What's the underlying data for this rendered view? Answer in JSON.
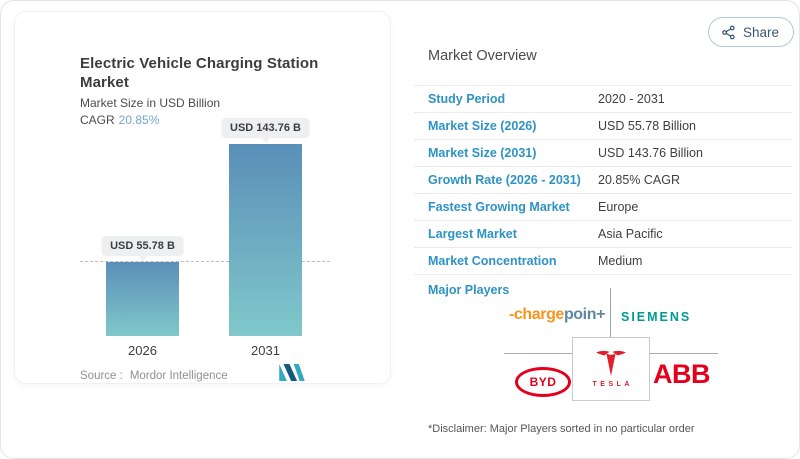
{
  "share": {
    "label": "Share"
  },
  "chart_panel": {
    "title_line1": "Electric Vehicle Charging Station",
    "title_line2": "Market",
    "subtitle": "Market Size in USD Billion",
    "cagr_label": "CAGR",
    "cagr_value": "20.85%",
    "source_label": "Source :",
    "source_value": "Mordor Intelligence"
  },
  "chart_data": {
    "type": "bar",
    "title": "Electric Vehicle Charging Station Market",
    "subtitle": "Market Size in USD Billion",
    "cagr": "20.85%",
    "categories": [
      "2026",
      "2031"
    ],
    "values": [
      55.78,
      143.76
    ],
    "data_labels": [
      "USD 55.78 B",
      "USD 143.76 B"
    ],
    "reference_line_at": 55.78,
    "ylim": [
      0,
      143.76
    ],
    "grid": false,
    "source": "Mordor Intelligence"
  },
  "overview": {
    "title": "Market Overview",
    "rows": [
      {
        "label": "Study Period",
        "value": "2020 - 2031"
      },
      {
        "label": "Market Size (2026)",
        "value": "USD 55.78 Billion"
      },
      {
        "label": "Market Size (2031)",
        "value": "USD 143.76 Billion"
      },
      {
        "label": "Growth Rate (2026 - 2031)",
        "value": "20.85% CAGR"
      },
      {
        "label": "Fastest Growing Market",
        "value": "Europe"
      },
      {
        "label": "Largest Market",
        "value": "Asia Pacific"
      },
      {
        "label": "Market Concentration",
        "value": "Medium"
      }
    ],
    "major_players_label": "Major Players",
    "players": {
      "chargepoint_prefix": "-charge",
      "chargepoint_suffix": "poin+",
      "siemens": "SIEMENS",
      "byd": "BYD",
      "tesla": "TESLA",
      "abb": "ABB"
    },
    "disclaimer": "*Disclaimer: Major Players sorted in no particular order"
  },
  "colors": {
    "label_blue": "#2d93c5",
    "cagr_blue": "#74a5c8",
    "bar_top": "#5a8fb8",
    "bar_bottom": "#80c8cb",
    "share_blue": "#3b5872",
    "chargepoint_orange": "#f7941d",
    "chargepoint_blue": "#5e87a3",
    "siemens_teal": "#009a96",
    "tesla_red": "#e31d2b",
    "byd_red": "#e4001c",
    "abb_red": "#e4001c"
  }
}
